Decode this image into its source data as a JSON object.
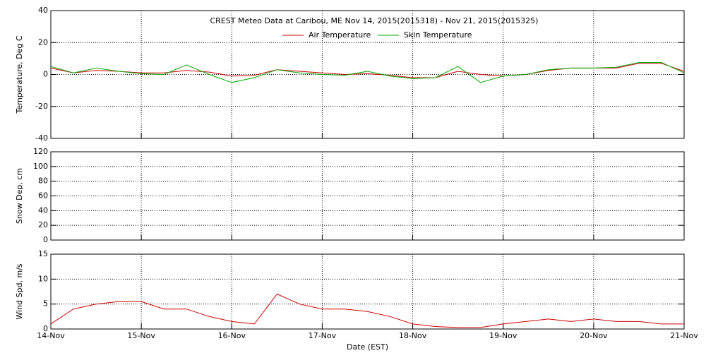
{
  "chart_data": [
    {
      "type": "line",
      "title": "CREST Meteo Data at Caribou, ME   Nov 14, 2015(2015318) - Nov 21, 2015(2015325)",
      "y_label": "Temperature, Deg C",
      "x": [
        0,
        0.25,
        0.5,
        0.75,
        1,
        1.25,
        1.5,
        1.75,
        2,
        2.25,
        2.5,
        2.75,
        3,
        3.25,
        3.5,
        3.75,
        4,
        4.25,
        4.5,
        4.75,
        5,
        5.25,
        5.5,
        5.75,
        6,
        6.25,
        6.5,
        6.75,
        7
      ],
      "series": [
        {
          "name": "Air Temperature",
          "color": "#cc0000",
          "values": [
            4,
            1,
            2.5,
            2,
            1,
            1,
            2.5,
            1.5,
            -1,
            -0.5,
            3,
            2,
            1,
            0,
            0.5,
            -0.5,
            -2,
            -2,
            2,
            0,
            -1,
            0,
            2.5,
            4,
            4,
            4,
            7,
            7,
            2
          ]
        },
        {
          "name": "Skin Temperature",
          "color": "#00aa00",
          "values": [
            5,
            1,
            4,
            2,
            0.5,
            0,
            6,
            0,
            -5,
            -2,
            3,
            1,
            0,
            -0.5,
            2,
            -1,
            -2.5,
            -2,
            5,
            -5,
            -1,
            0,
            3,
            4,
            4,
            4.5,
            7.5,
            7.5,
            1
          ]
        }
      ],
      "xlim": [
        0,
        7
      ],
      "xticks": [
        0,
        1,
        2,
        3,
        4,
        5,
        6,
        7
      ],
      "ylim": [
        -40,
        40
      ],
      "yticks": [
        -40,
        -20,
        0,
        20,
        40
      ],
      "grid": true
    },
    {
      "type": "line",
      "y_label": "Snow Dep, cm",
      "xlim": [
        0,
        7
      ],
      "xticks": [
        0,
        1,
        2,
        3,
        4,
        5,
        6,
        7
      ],
      "ylim": [
        0,
        120
      ],
      "yticks": [
        0,
        20,
        40,
        60,
        80,
        100,
        120
      ],
      "grid": true
    },
    {
      "type": "line",
      "y_label": "Wind Spd, m/s",
      "x_label": "Date (EST)",
      "x": [
        0,
        0.25,
        0.5,
        0.75,
        1,
        1.25,
        1.5,
        1.75,
        2,
        2.25,
        2.5,
        2.75,
        3,
        3.25,
        3.5,
        3.75,
        4,
        4.25,
        4.5,
        4.75,
        5,
        5.25,
        5.5,
        5.75,
        6,
        6.25,
        6.5,
        6.75,
        7
      ],
      "series": [
        {
          "color": "#cc0000",
          "values": [
            1,
            4,
            5,
            5.5,
            5.5,
            4,
            4,
            2.5,
            1.5,
            1,
            7,
            5,
            4,
            4,
            3.5,
            2.5,
            1,
            0.5,
            0.3,
            0.3,
            1,
            1.5,
            2,
            1.5,
            2,
            1.5,
            1.5,
            1,
            1
          ]
        }
      ],
      "xlim": [
        0,
        7
      ],
      "xticks": [
        {
          "value": 0,
          "label": "14-Nov"
        },
        {
          "value": 1,
          "label": "15-Nov"
        },
        {
          "value": 2,
          "label": "16-Nov"
        },
        {
          "value": 3,
          "label": "17-Nov"
        },
        {
          "value": 4,
          "label": "18-Nov"
        },
        {
          "value": 5,
          "label": "19-Nov"
        },
        {
          "value": 6,
          "label": "20-Nov"
        },
        {
          "value": 7,
          "label": "21-Nov"
        }
      ],
      "ylim": [
        0,
        15
      ],
      "yticks": [
        0,
        5,
        10,
        15
      ],
      "grid": true
    }
  ]
}
